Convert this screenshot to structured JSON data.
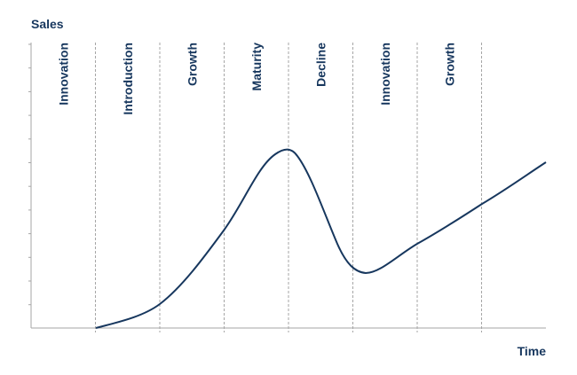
{
  "axis": {
    "y_label": "Sales",
    "x_label": "Time"
  },
  "phases": [
    "Innovation",
    "Introduction",
    "Growth",
    "Maturity",
    "Decline",
    "Innovation",
    "Growth"
  ]
}
